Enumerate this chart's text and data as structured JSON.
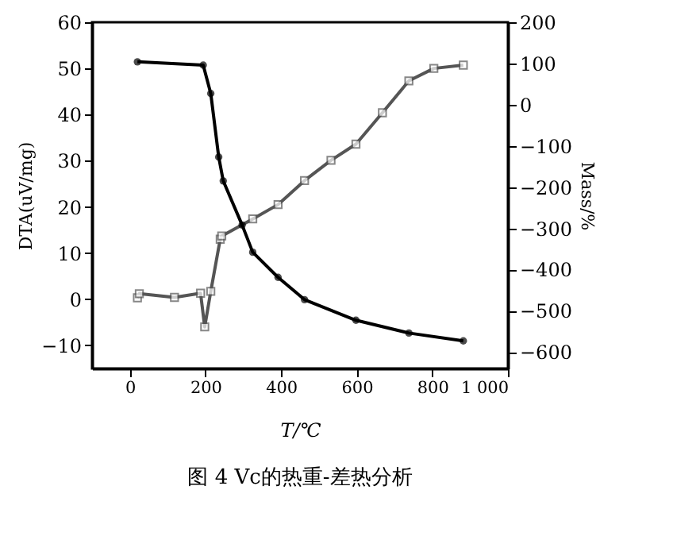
{
  "chart_data": {
    "type": "line",
    "title": "图 4  Vc的热重-差热分析",
    "xlabel": "T/℃",
    "ylabel": "DTA(uV/mg)",
    "y2label": "Mass/%",
    "xlim": [
      -100,
      1000
    ],
    "xticks": [
      0,
      200,
      400,
      600,
      800,
      {
        "value": 1000,
        "label": "1 000"
      }
    ],
    "ylim": [
      -15,
      60
    ],
    "yticks": [
      -10,
      0,
      10,
      20,
      30,
      40,
      50,
      60
    ],
    "y2lim": [
      -640,
      200
    ],
    "y2ticks": [
      -600,
      -500,
      -400,
      -300,
      -200,
      -100,
      0,
      100,
      200
    ],
    "line_style": "solid",
    "series": [
      {
        "color": "#555555",
        "marker": "square",
        "x": [
          20,
          25,
          118,
          187,
          198,
          214,
          239,
          243,
          325,
          392,
          462,
          532,
          598,
          668,
          738,
          804,
          882
        ],
        "values": [
          0.3,
          1.2,
          0.4,
          1.3,
          -6,
          1.7,
          13,
          13.7,
          17.4,
          20.5,
          25.7,
          30.1,
          33.6,
          40.4,
          47.3,
          50,
          50.7
        ]
      },
      {
        "color": "#000000",
        "marker": "circle",
        "axis": "y2",
        "x": [
          20,
          194,
          214,
          235,
          247,
          297,
          325,
          392,
          462,
          598,
          738,
          882
        ],
        "values": [
          104,
          96,
          27,
          -127,
          -185,
          -292,
          -358,
          -419,
          -473,
          -523,
          -554,
          -573
        ]
      }
    ]
  }
}
